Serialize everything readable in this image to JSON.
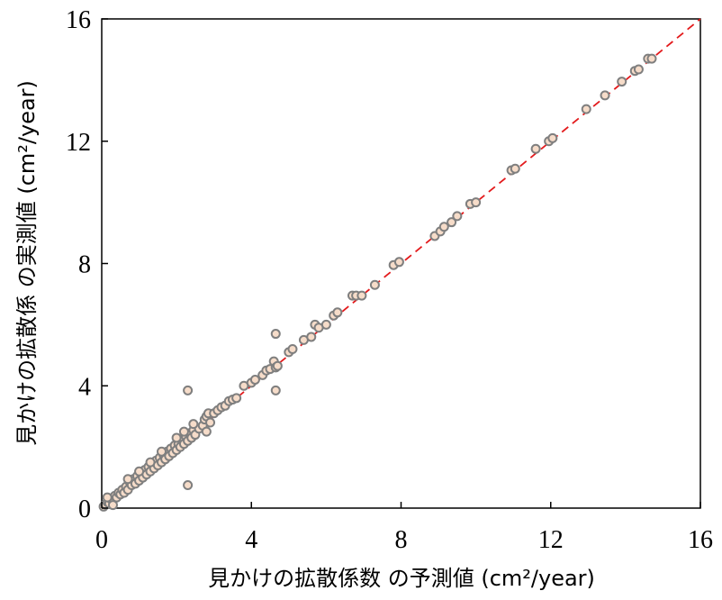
{
  "chart_data": {
    "type": "scatter",
    "xlabel": "見かけの拡散係数 の予測値 (cm²/year)",
    "ylabel": "見かけの拡散係 の実測値 (cm²/year)",
    "xlim": [
      0,
      16
    ],
    "ylim": [
      0,
      16
    ],
    "xticks": [
      "0",
      "4",
      "8",
      "12",
      "16"
    ],
    "yticks": [
      "0",
      "4",
      "8",
      "12",
      "16"
    ],
    "grid": false,
    "reference_line": {
      "from": [
        0,
        0
      ],
      "to": [
        16,
        16
      ],
      "style": "dashed",
      "color": "#e31a1c"
    },
    "marker": {
      "fill": "#f6dcc9",
      "stroke": "#7f7f7f"
    },
    "points": [
      [
        0.05,
        0.05
      ],
      [
        0.1,
        0.12
      ],
      [
        0.15,
        0.2
      ],
      [
        0.2,
        0.15
      ],
      [
        0.25,
        0.3
      ],
      [
        0.3,
        0.25
      ],
      [
        0.35,
        0.4
      ],
      [
        0.4,
        0.35
      ],
      [
        0.45,
        0.5
      ],
      [
        0.5,
        0.45
      ],
      [
        0.55,
        0.6
      ],
      [
        0.6,
        0.5
      ],
      [
        0.65,
        0.7
      ],
      [
        0.7,
        0.6
      ],
      [
        0.75,
        0.85
      ],
      [
        0.8,
        0.75
      ],
      [
        0.85,
        0.95
      ],
      [
        0.9,
        0.8
      ],
      [
        0.95,
        1.05
      ],
      [
        1.0,
        0.9
      ],
      [
        1.05,
        1.15
      ],
      [
        1.1,
        1.0
      ],
      [
        1.15,
        1.25
      ],
      [
        1.2,
        1.1
      ],
      [
        1.25,
        1.35
      ],
      [
        1.3,
        1.2
      ],
      [
        1.35,
        1.45
      ],
      [
        1.4,
        1.3
      ],
      [
        1.45,
        1.55
      ],
      [
        1.5,
        1.4
      ],
      [
        1.55,
        1.65
      ],
      [
        1.6,
        1.5
      ],
      [
        1.65,
        1.75
      ],
      [
        1.7,
        1.6
      ],
      [
        1.75,
        1.85
      ],
      [
        1.8,
        1.7
      ],
      [
        1.85,
        1.95
      ],
      [
        1.9,
        1.8
      ],
      [
        1.95,
        2.05
      ],
      [
        2.0,
        1.9
      ],
      [
        2.05,
        2.1
      ],
      [
        2.1,
        2.0
      ],
      [
        2.15,
        2.25
      ],
      [
        2.2,
        2.1
      ],
      [
        2.25,
        2.35
      ],
      [
        2.3,
        2.2
      ],
      [
        2.35,
        2.45
      ],
      [
        2.4,
        2.3
      ],
      [
        2.45,
        2.55
      ],
      [
        2.5,
        2.4
      ],
      [
        2.6,
        2.6
      ],
      [
        2.7,
        2.7
      ],
      [
        2.75,
        2.9
      ],
      [
        2.8,
        3.0
      ],
      [
        2.85,
        3.1
      ],
      [
        2.9,
        2.8
      ],
      [
        3.0,
        3.1
      ],
      [
        3.1,
        3.2
      ],
      [
        3.2,
        3.3
      ],
      [
        3.3,
        3.35
      ],
      [
        3.4,
        3.5
      ],
      [
        3.5,
        3.55
      ],
      [
        3.6,
        3.6
      ],
      [
        3.8,
        4.0
      ],
      [
        4.0,
        4.1
      ],
      [
        4.1,
        4.2
      ],
      [
        4.3,
        4.35
      ],
      [
        4.4,
        4.5
      ],
      [
        4.5,
        4.55
      ],
      [
        4.6,
        4.8
      ],
      [
        4.65,
        4.6
      ],
      [
        4.7,
        4.65
      ],
      [
        5.0,
        5.1
      ],
      [
        5.1,
        5.2
      ],
      [
        5.4,
        5.5
      ],
      [
        5.6,
        5.6
      ],
      [
        5.7,
        6.0
      ],
      [
        5.8,
        5.9
      ],
      [
        6.0,
        6.0
      ],
      [
        6.2,
        6.3
      ],
      [
        6.3,
        6.4
      ],
      [
        6.7,
        6.95
      ],
      [
        6.8,
        6.95
      ],
      [
        6.95,
        6.95
      ],
      [
        7.3,
        7.3
      ],
      [
        7.8,
        7.95
      ],
      [
        7.95,
        8.05
      ],
      [
        8.9,
        8.9
      ],
      [
        9.05,
        9.05
      ],
      [
        9.15,
        9.2
      ],
      [
        9.35,
        9.35
      ],
      [
        9.5,
        9.55
      ],
      [
        9.85,
        9.95
      ],
      [
        10.0,
        10.0
      ],
      [
        10.95,
        11.05
      ],
      [
        11.05,
        11.1
      ],
      [
        11.6,
        11.75
      ],
      [
        11.95,
        12.0
      ],
      [
        12.05,
        12.1
      ],
      [
        12.95,
        13.05
      ],
      [
        13.45,
        13.5
      ],
      [
        13.9,
        13.95
      ],
      [
        14.25,
        14.3
      ],
      [
        14.35,
        14.35
      ],
      [
        14.6,
        14.7
      ],
      [
        14.7,
        14.7
      ],
      [
        2.3,
        3.85
      ],
      [
        2.3,
        0.75
      ],
      [
        4.65,
        5.7
      ],
      [
        4.65,
        3.85
      ],
      [
        2.8,
        2.5
      ],
      [
        0.3,
        0.1
      ],
      [
        0.15,
        0.35
      ],
      [
        0.7,
        0.95
      ],
      [
        1.0,
        1.2
      ],
      [
        1.3,
        1.5
      ],
      [
        1.6,
        1.85
      ],
      [
        2.0,
        2.3
      ],
      [
        2.2,
        2.5
      ],
      [
        2.45,
        2.75
      ]
    ]
  }
}
